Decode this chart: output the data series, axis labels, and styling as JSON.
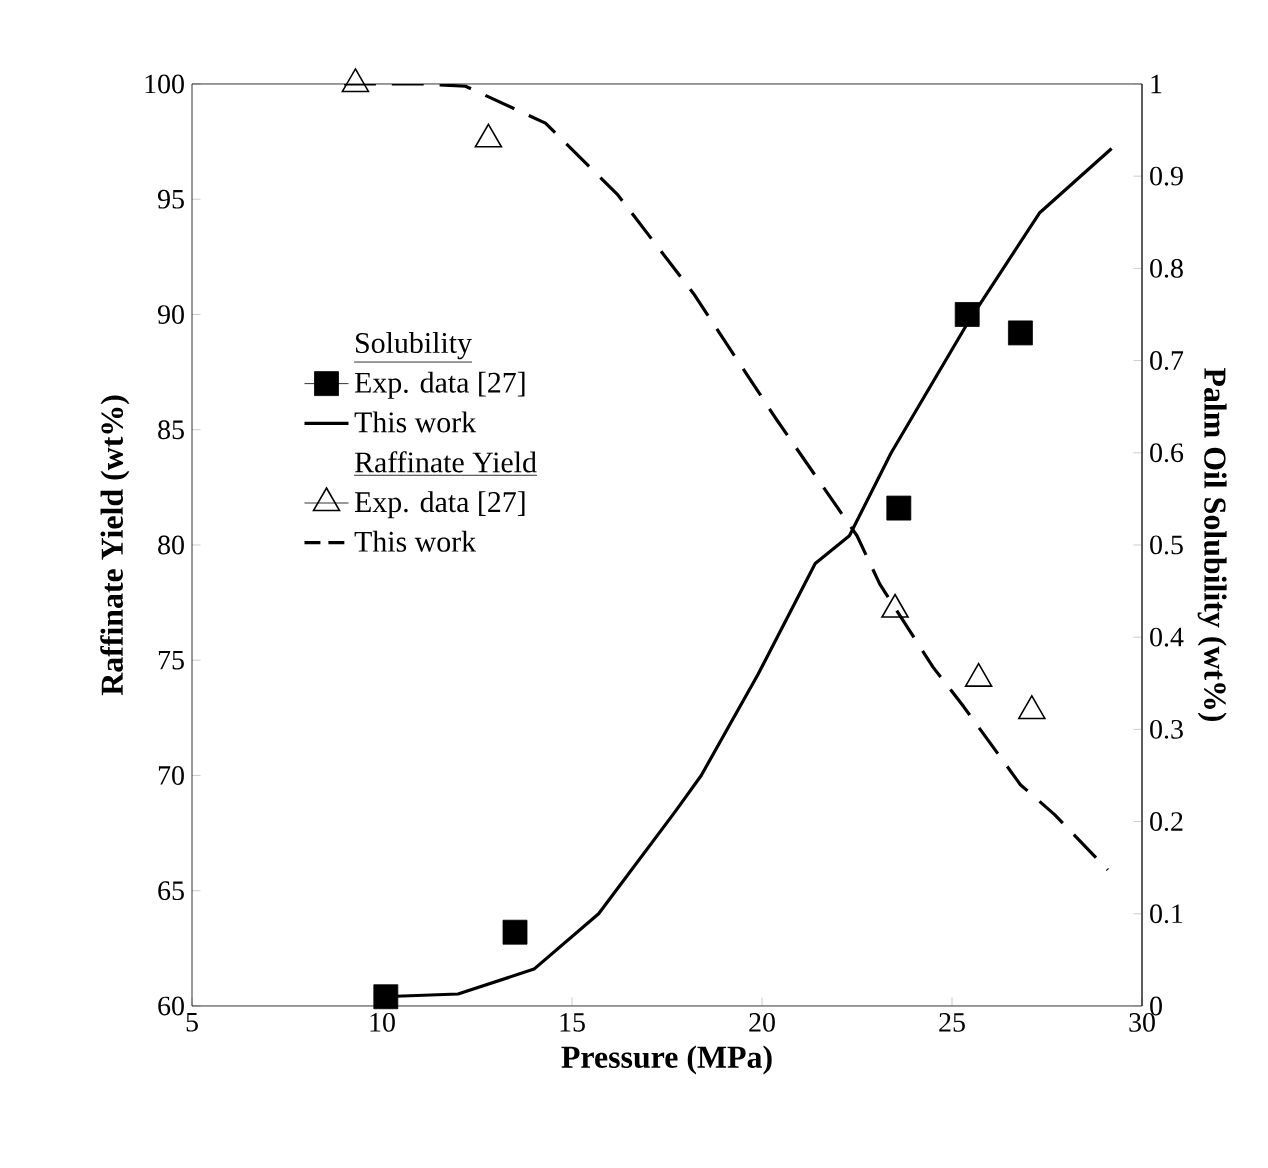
{
  "chart_data": {
    "type": "line",
    "xlabel": "Pressure (MPa)",
    "ylabel": "Raffinate Yield (wt%)",
    "y2label": "Palm Oil Solubility (wt%)",
    "xlim": [
      5,
      30
    ],
    "xticks": [
      5,
      10,
      15,
      20,
      25,
      30
    ],
    "ylim": [
      60,
      100
    ],
    "yticks": [
      60,
      65,
      70,
      75,
      80,
      85,
      90,
      95,
      100
    ],
    "y2lim": [
      0,
      1
    ],
    "y2ticks": [
      0,
      0.1,
      0.2,
      0.3,
      0.4,
      0.5,
      0.6,
      0.7,
      0.8,
      0.9,
      1
    ],
    "legend": "left",
    "grid": false,
    "annotations": [
      "Solubility",
      "Raffinate Yield"
    ],
    "series": [
      {
        "name": "Exp. data [27]",
        "type": "scatter",
        "axis": "y2",
        "marker": "square",
        "color": "#000000",
        "x": [
          10.1,
          13.5,
          23.6,
          25.4,
          26.8
        ],
        "values": [
          0.01,
          0.08,
          0.54,
          0.75,
          0.73
        ]
      },
      {
        "name": "This work",
        "axis": "y2",
        "line_style": "solid",
        "color": "#000000",
        "x": [
          10,
          12,
          14,
          15.7,
          17.7,
          18.4,
          19.9,
          21.4,
          22.3,
          23.4,
          25.4,
          27.3,
          29.2
        ],
        "values": [
          0.01,
          0.013,
          0.04,
          0.1,
          0.21,
          0.25,
          0.36,
          0.48,
          0.51,
          0.6,
          0.74,
          0.86,
          0.93
        ]
      },
      {
        "name": "Exp. data [27]",
        "type": "scatter",
        "axis": "y",
        "marker": "triangle",
        "color": "#000000",
        "x": [
          9.3,
          12.8,
          23.5,
          25.7,
          27.1
        ],
        "values": [
          100,
          97.6,
          77.2,
          74.2,
          72.8
        ]
      },
      {
        "name": "This work",
        "axis": "y",
        "line_style": "dashed",
        "color": "#000000",
        "x": [
          9,
          11.1,
          12.2,
          14.3,
          16.2,
          18.2,
          20.4,
          22.5,
          23.1,
          24.5,
          25.3,
          26.8,
          27.7,
          29.1
        ],
        "values": [
          100,
          100,
          99.9,
          98.3,
          95.2,
          90.9,
          85.4,
          80.4,
          78.3,
          74.7,
          73.0,
          69.6,
          68.3,
          65.9
        ]
      }
    ]
  }
}
